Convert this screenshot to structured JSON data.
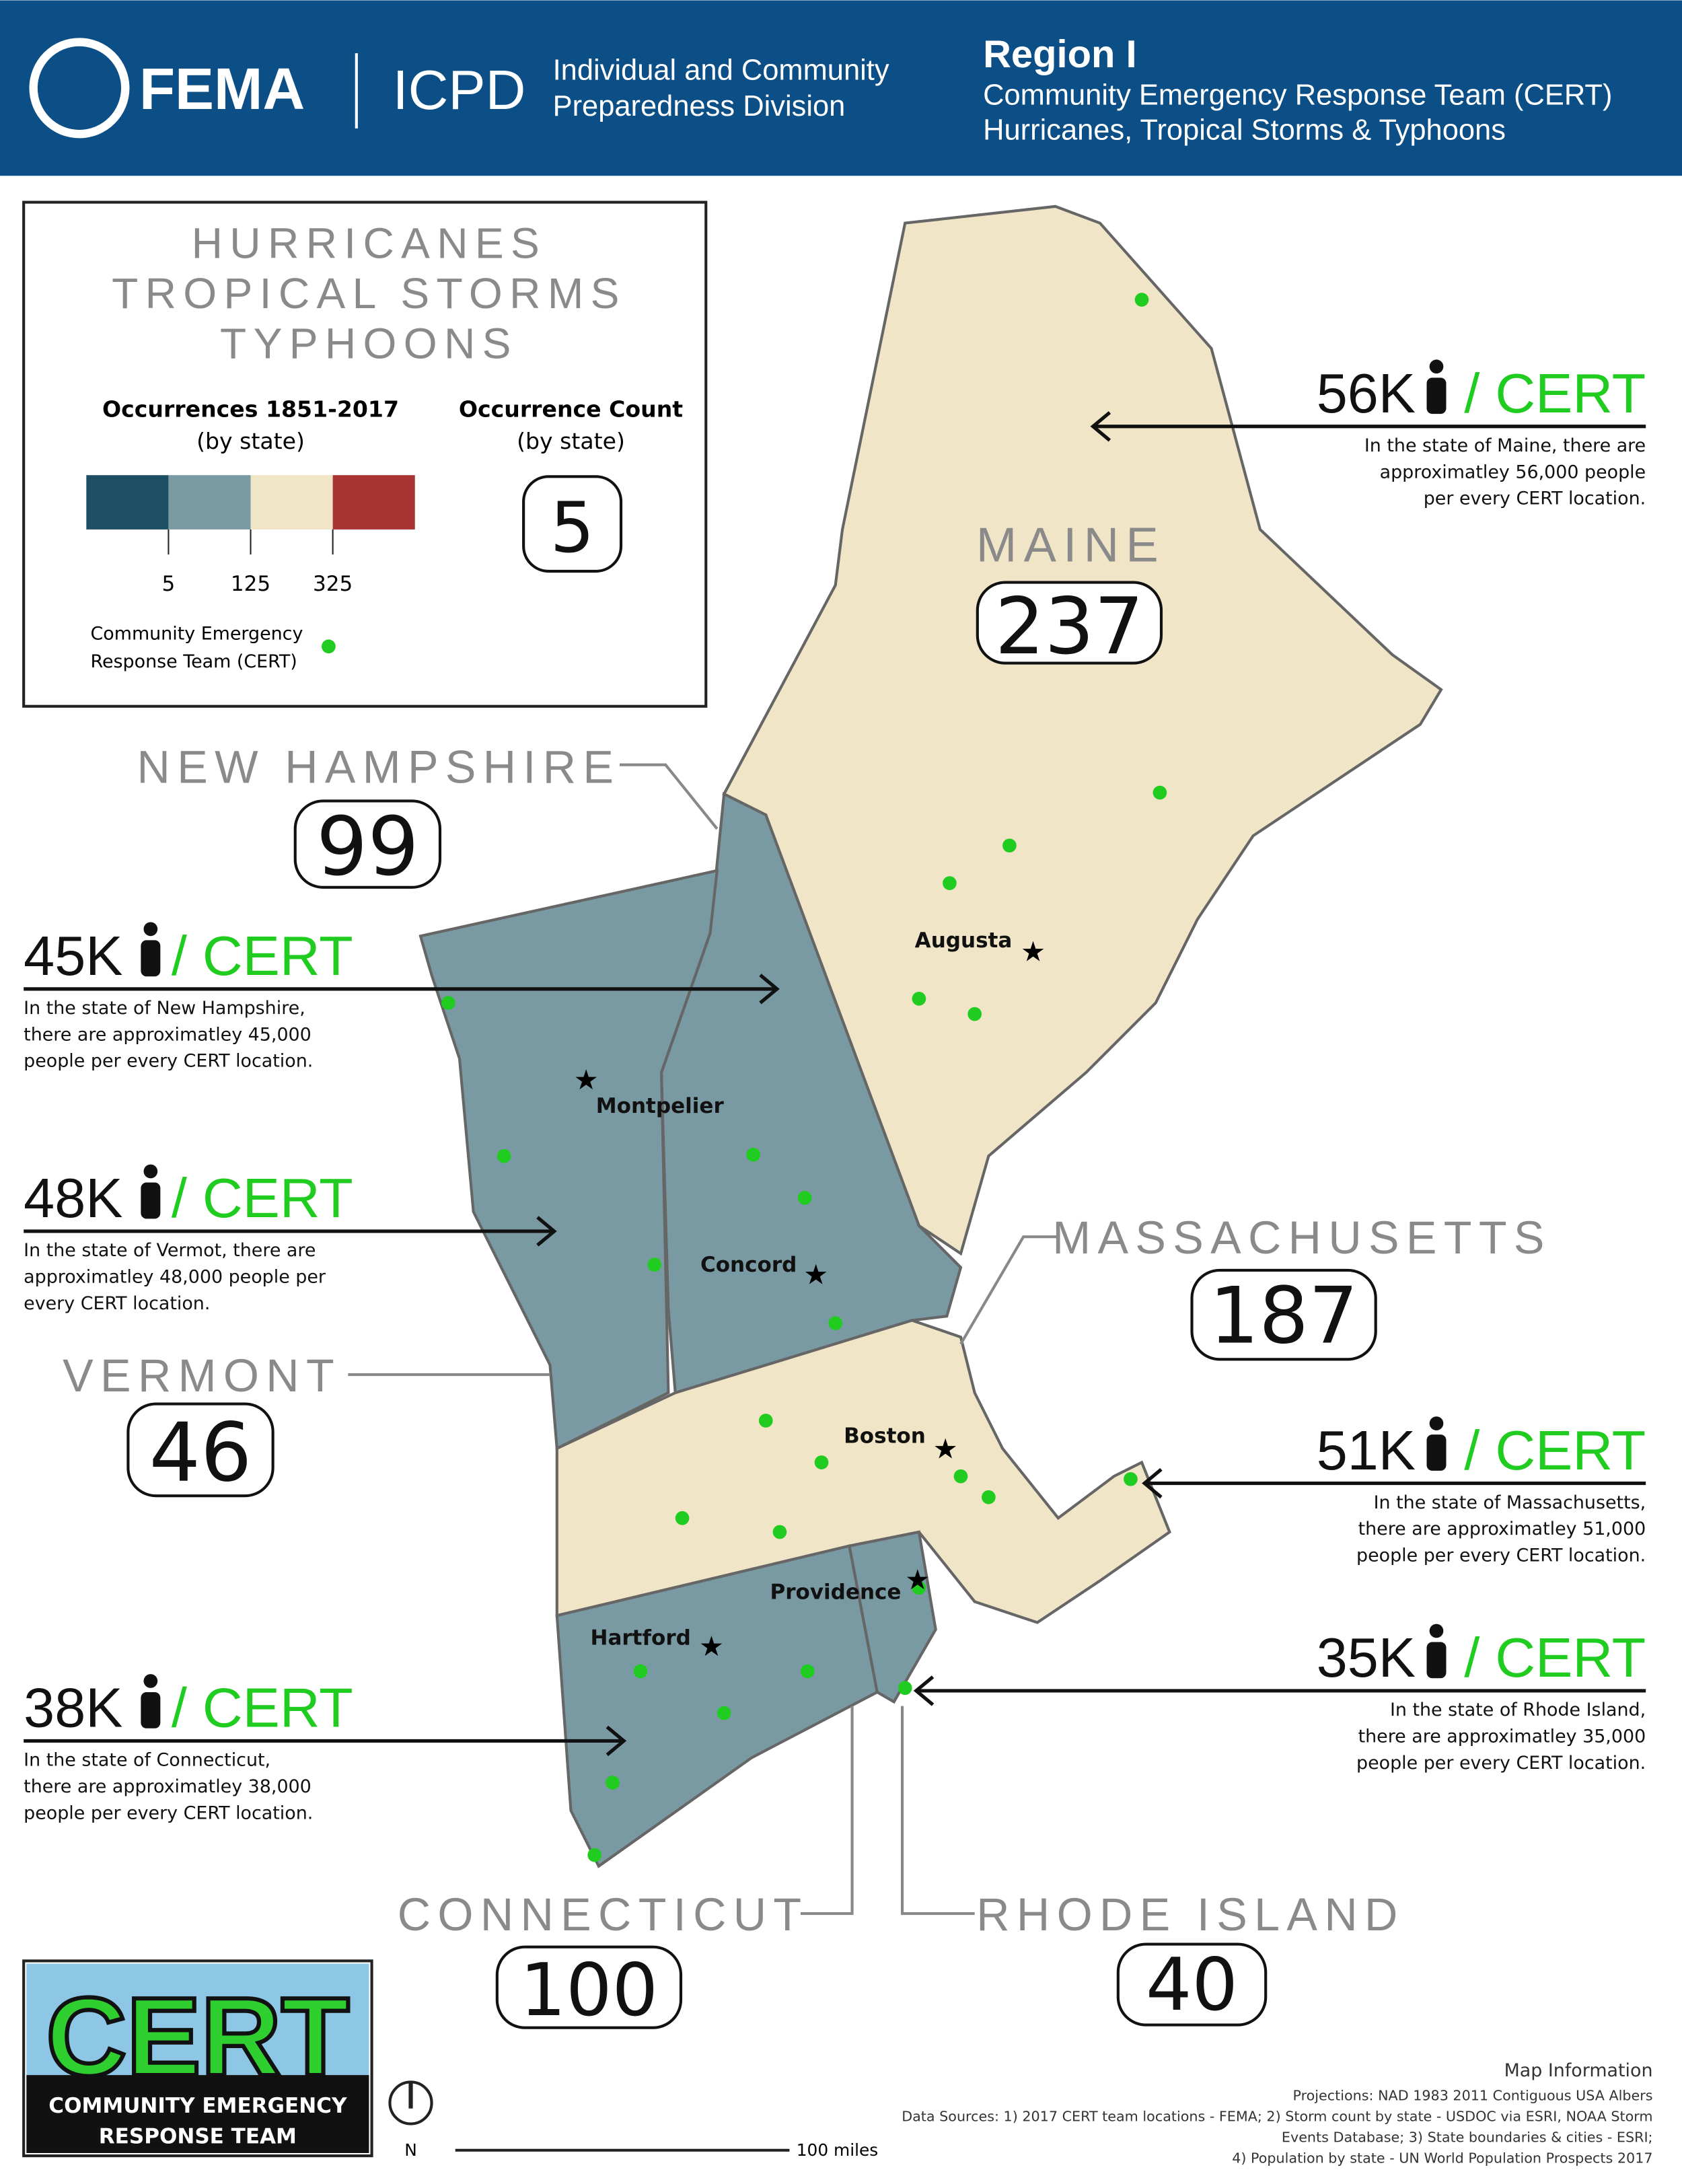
{
  "header": {
    "agency": "FEMA",
    "division_short": "ICPD",
    "division_name": [
      "Individual and Community",
      "Preparedness Division"
    ],
    "region": "Region I",
    "subtitle": [
      "Community Emergency Response Team (CERT)",
      "Hurricanes, Tropical Storms & Typhoons"
    ]
  },
  "legend": {
    "title": [
      "HURRICANES",
      "TROPICAL STORMS",
      "TYPHOONS"
    ],
    "occurrences_label": "Occurrences 1851-2017",
    "occurrences_sub": "(by state)",
    "count_label": "Occurrence Count",
    "count_sub": "(by state)",
    "count_example": "5",
    "scale_ticks": [
      "5",
      "125",
      "325"
    ],
    "cert_label": [
      "Community Emergency",
      "Response Team (CERT)"
    ]
  },
  "states": [
    {
      "name": "MAINE",
      "count": "237",
      "ratio": "56K",
      "per": "/ CERT",
      "description": [
        "In the state of Maine, there are",
        "approximatley 56,000 people",
        "per every CERT location."
      ]
    },
    {
      "name": "NEW HAMPSHIRE",
      "count": "99",
      "ratio": "45K",
      "per": "/ CERT",
      "description": [
        "In the state of New Hampshire,",
        "there are approximatley 45,000",
        "people per every CERT location."
      ]
    },
    {
      "name": "VERMONT",
      "count": "46",
      "ratio": "48K",
      "per": "/ CERT",
      "description": [
        "In the state of Vermot, there are",
        "approximatley 48,000 people per",
        "every CERT location."
      ]
    },
    {
      "name": "MASSACHUSETTS",
      "count": "187",
      "ratio": "51K",
      "per": "/ CERT",
      "description": [
        "In the state of Massachusetts,",
        "there are approximatley 51,000",
        "people per every CERT location."
      ]
    },
    {
      "name": "RHODE ISLAND",
      "count": "40",
      "ratio": "35K",
      "per": "/ CERT",
      "description": [
        "In the state of Rhode Island,",
        "there are approximatley 35,000",
        "people per every CERT location."
      ]
    },
    {
      "name": "CONNECTICUT",
      "count": "100",
      "ratio": "38K",
      "per": "/ CERT",
      "description": [
        "In the state of Connecticut,",
        "there are approximatley 38,000",
        "people per every CERT location."
      ]
    }
  ],
  "cities": [
    "Augusta",
    "Montpelier",
    "Concord",
    "Boston",
    "Providence",
    "Hartford"
  ],
  "scale_bar": "100 miles",
  "north": "N",
  "logo": {
    "word": "CERT",
    "lines": [
      "COMMUNITY EMERGENCY",
      "RESPONSE TEAM"
    ]
  },
  "map_info": {
    "title": "Map Information",
    "lines": [
      "Projections: NAD 1983 2011 Contiguous USA Albers",
      "Data Sources: 1) 2017 CERT team locations - FEMA; 2) Storm count by state - USDOC via ESRI, NOAA Storm",
      "Events Database; 3) State boundaries & cities - ESRI;",
      "4) Population by state - UN World Population Prospects 2017"
    ]
  }
}
